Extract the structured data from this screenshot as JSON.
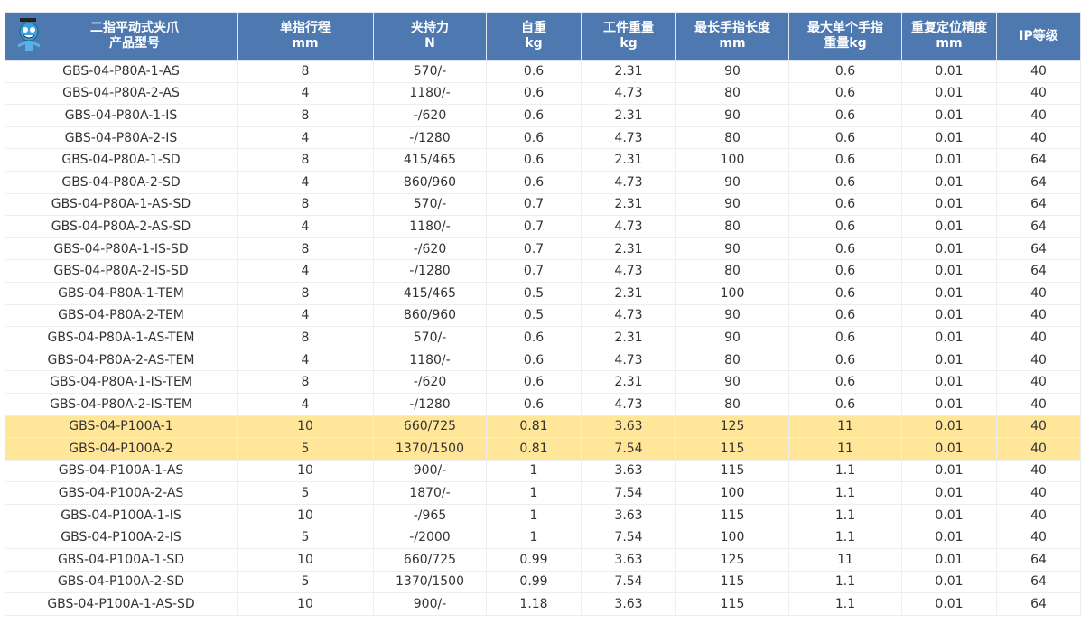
{
  "headers": [
    {
      "l1": "二指平动式夹爪",
      "l2": "产品型号"
    },
    {
      "l1": "单指行程",
      "l2": "mm"
    },
    {
      "l1": "夹持力",
      "l2": "N"
    },
    {
      "l1": "自重",
      "l2": "kg"
    },
    {
      "l1": "工件重量",
      "l2": "kg"
    },
    {
      "l1": "最长手指长度",
      "l2": "mm"
    },
    {
      "l1": "最大单个手指",
      "l2": "重量kg"
    },
    {
      "l1": "重复定位精度",
      "l2": "mm"
    },
    {
      "l1": "IP等级",
      "l2": ""
    }
  ],
  "highlight_color": "#ffe699",
  "header_color": "#4e79b0",
  "rows": [
    {
      "hl": false,
      "c": [
        "GBS-04-P80A-1-AS",
        "8",
        "570/-",
        "0.6",
        "2.31",
        "90",
        "0.6",
        "0.01",
        "40"
      ]
    },
    {
      "hl": false,
      "c": [
        "GBS-04-P80A-2-AS",
        "4",
        "1180/-",
        "0.6",
        "4.73",
        "80",
        "0.6",
        "0.01",
        "40"
      ]
    },
    {
      "hl": false,
      "c": [
        "GBS-04-P80A-1-IS",
        "8",
        "-/620",
        "0.6",
        "2.31",
        "90",
        "0.6",
        "0.01",
        "40"
      ]
    },
    {
      "hl": false,
      "c": [
        "GBS-04-P80A-2-IS",
        "4",
        "-/1280",
        "0.6",
        "4.73",
        "80",
        "0.6",
        "0.01",
        "40"
      ]
    },
    {
      "hl": false,
      "c": [
        "GBS-04-P80A-1-SD",
        "8",
        "415/465",
        "0.6",
        "2.31",
        "100",
        "0.6",
        "0.01",
        "64"
      ]
    },
    {
      "hl": false,
      "c": [
        "GBS-04-P80A-2-SD",
        "4",
        "860/960",
        "0.6",
        "4.73",
        "90",
        "0.6",
        "0.01",
        "64"
      ]
    },
    {
      "hl": false,
      "c": [
        "GBS-04-P80A-1-AS-SD",
        "8",
        "570/-",
        "0.7",
        "2.31",
        "90",
        "0.6",
        "0.01",
        "64"
      ]
    },
    {
      "hl": false,
      "c": [
        "GBS-04-P80A-2-AS-SD",
        "4",
        "1180/-",
        "0.7",
        "4.73",
        "80",
        "0.6",
        "0.01",
        "64"
      ]
    },
    {
      "hl": false,
      "c": [
        "GBS-04-P80A-1-IS-SD",
        "8",
        "-/620",
        "0.7",
        "2.31",
        "90",
        "0.6",
        "0.01",
        "64"
      ]
    },
    {
      "hl": false,
      "c": [
        "GBS-04-P80A-2-IS-SD",
        "4",
        "-/1280",
        "0.7",
        "4.73",
        "80",
        "0.6",
        "0.01",
        "64"
      ]
    },
    {
      "hl": false,
      "c": [
        "GBS-04-P80A-1-TEM",
        "8",
        "415/465",
        "0.5",
        "2.31",
        "100",
        "0.6",
        "0.01",
        "40"
      ]
    },
    {
      "hl": false,
      "c": [
        "GBS-04-P80A-2-TEM",
        "4",
        "860/960",
        "0.5",
        "4.73",
        "90",
        "0.6",
        "0.01",
        "40"
      ]
    },
    {
      "hl": false,
      "c": [
        "GBS-04-P80A-1-AS-TEM",
        "8",
        "570/-",
        "0.6",
        "2.31",
        "90",
        "0.6",
        "0.01",
        "40"
      ]
    },
    {
      "hl": false,
      "c": [
        "GBS-04-P80A-2-AS-TEM",
        "4",
        "1180/-",
        "0.6",
        "4.73",
        "80",
        "0.6",
        "0.01",
        "40"
      ]
    },
    {
      "hl": false,
      "c": [
        "GBS-04-P80A-1-IS-TEM",
        "8",
        "-/620",
        "0.6",
        "2.31",
        "90",
        "0.6",
        "0.01",
        "40"
      ]
    },
    {
      "hl": false,
      "c": [
        "GBS-04-P80A-2-IS-TEM",
        "4",
        "-/1280",
        "0.6",
        "4.73",
        "80",
        "0.6",
        "0.01",
        "40"
      ]
    },
    {
      "hl": true,
      "c": [
        "GBS-04-P100A-1",
        "10",
        "660/725",
        "0.81",
        "3.63",
        "125",
        "11",
        "0.01",
        "40"
      ]
    },
    {
      "hl": true,
      "c": [
        "GBS-04-P100A-2",
        "5",
        "1370/1500",
        "0.81",
        "7.54",
        "115",
        "11",
        "0.01",
        "40"
      ]
    },
    {
      "hl": false,
      "c": [
        "GBS-04-P100A-1-AS",
        "10",
        "900/-",
        "1",
        "3.63",
        "115",
        "1.1",
        "0.01",
        "40"
      ]
    },
    {
      "hl": false,
      "c": [
        "GBS-04-P100A-2-AS",
        "5",
        "1870/-",
        "1",
        "7.54",
        "100",
        "1.1",
        "0.01",
        "40"
      ]
    },
    {
      "hl": false,
      "c": [
        "GBS-04-P100A-1-IS",
        "10",
        "-/965",
        "1",
        "3.63",
        "115",
        "1.1",
        "0.01",
        "40"
      ]
    },
    {
      "hl": false,
      "c": [
        "GBS-04-P100A-2-IS",
        "5",
        "-/2000",
        "1",
        "7.54",
        "100",
        "1.1",
        "0.01",
        "40"
      ]
    },
    {
      "hl": false,
      "c": [
        "GBS-04-P100A-1-SD",
        "10",
        "660/725",
        "0.99",
        "3.63",
        "125",
        "11",
        "0.01",
        "64"
      ]
    },
    {
      "hl": false,
      "c": [
        "GBS-04-P100A-2-SD",
        "5",
        "1370/1500",
        "0.99",
        "7.54",
        "115",
        "1.1",
        "0.01",
        "64"
      ]
    },
    {
      "hl": false,
      "c": [
        "GBS-04-P100A-1-AS-SD",
        "10",
        "900/-",
        "1.18",
        "3.63",
        "115",
        "1.1",
        "0.01",
        "64"
      ]
    }
  ]
}
